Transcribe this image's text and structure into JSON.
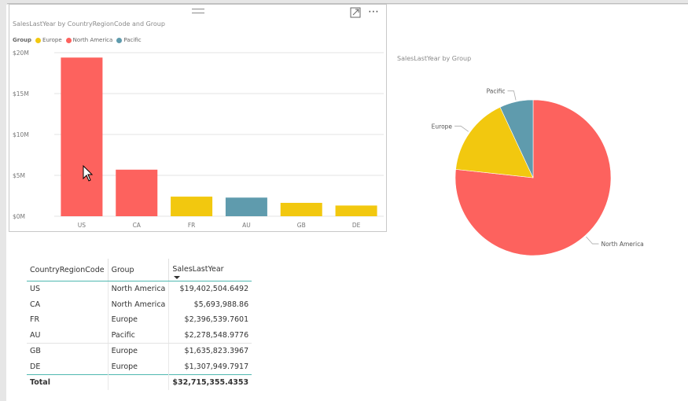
{
  "bar_chart": {
    "title": "SalesLastYear by CountryRegionCode and Group",
    "legend": {
      "title": "Group",
      "items": [
        {
          "label": "Europe",
          "color": "#F2C80F"
        },
        {
          "label": "North America",
          "color": "#FD625E"
        },
        {
          "label": "Pacific",
          "color": "#5F9BAD"
        }
      ]
    }
  },
  "pie_chart": {
    "title": "SalesLastYear by Group"
  },
  "chart_data": [
    {
      "type": "bar",
      "title": "SalesLastYear by CountryRegionCode and Group",
      "categories": [
        "US",
        "CA",
        "FR",
        "AU",
        "GB",
        "DE"
      ],
      "values": [
        19.4025,
        5.694,
        2.3965,
        2.2785,
        1.6358,
        1.3079
      ],
      "category_groups": [
        "North America",
        "North America",
        "Europe",
        "Pacific",
        "Europe",
        "Europe"
      ],
      "y_ticks": [
        "$0M",
        "$5M",
        "$10M",
        "$15M",
        "$20M"
      ],
      "ylim": [
        0,
        20
      ],
      "legend_title": "Group",
      "legend": [
        "Europe",
        "North America",
        "Pacific"
      ],
      "legend_position": "top-left",
      "grid": true,
      "colors": {
        "Europe": "#F2C80F",
        "North America": "#FD625E",
        "Pacific": "#5F9BAD"
      }
    },
    {
      "type": "pie",
      "title": "SalesLastYear by Group",
      "labels": [
        "North America",
        "Europe",
        "Pacific"
      ],
      "values": [
        25.0965,
        5.3402,
        2.2785
      ],
      "colors": [
        "#FD625E",
        "#F2C80F",
        "#5F9BAD"
      ]
    }
  ],
  "table": {
    "columns": [
      "CountryRegionCode",
      "Group",
      "SalesLastYear"
    ],
    "rows": [
      [
        "US",
        "North America",
        "$19,402,504.6492"
      ],
      [
        "CA",
        "North America",
        "$5,693,988.86"
      ],
      [
        "FR",
        "Europe",
        "$2,396,539.7601"
      ],
      [
        "AU",
        "Pacific",
        "$2,278,548.9776"
      ],
      [
        "GB",
        "Europe",
        "$1,635,823.3967"
      ],
      [
        "DE",
        "Europe",
        "$1,307,949.7917"
      ]
    ],
    "total_label": "Total",
    "total_value": "$32,715,355.4353"
  },
  "icons": {
    "more": "⋯",
    "expand": "focus-mode-icon",
    "drag": "drag-handle-icon"
  }
}
